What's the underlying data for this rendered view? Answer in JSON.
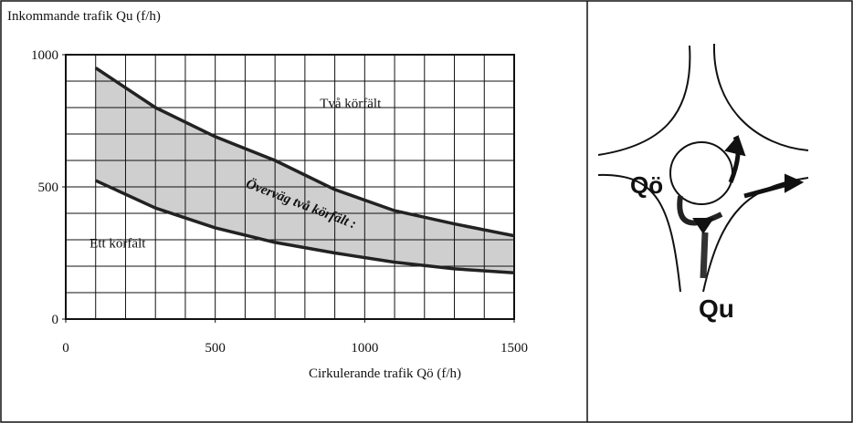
{
  "chart_data": {
    "type": "line",
    "title": "Inkommande trafik Qu (f/h)",
    "x_label": "Cirkulerande trafik Qö (f/h)",
    "x": [
      100,
      300,
      500,
      700,
      900,
      1100,
      1300,
      1500
    ],
    "series": [
      {
        "color": "#222222",
        "values": [
          950,
          800,
          690,
          600,
          490,
          410,
          360,
          315
        ]
      },
      {
        "color": "#222222",
        "values": [
          524,
          420,
          345,
          290,
          250,
          215,
          190,
          175
        ]
      }
    ],
    "fill_between": true,
    "fill_color": "#cfcfcf",
    "annotations": [
      "Två körfält",
      "Överväg två körfält :",
      "Ett körfält"
    ],
    "xlim": [
      0,
      1500
    ],
    "ylim": [
      0,
      1000
    ],
    "xticks": [
      0,
      500,
      1000,
      1500
    ],
    "yticks": [
      0,
      500,
      1000
    ],
    "xgrid": [
      100,
      200,
      300,
      400,
      500,
      600,
      700,
      800,
      900,
      1000,
      1100,
      1200,
      1300,
      1400
    ],
    "ygrid": [
      100,
      200,
      300,
      400,
      500,
      600,
      700,
      800,
      900
    ],
    "grid": true
  },
  "diagram": {
    "labels": [
      "Qö",
      "Qu"
    ]
  }
}
